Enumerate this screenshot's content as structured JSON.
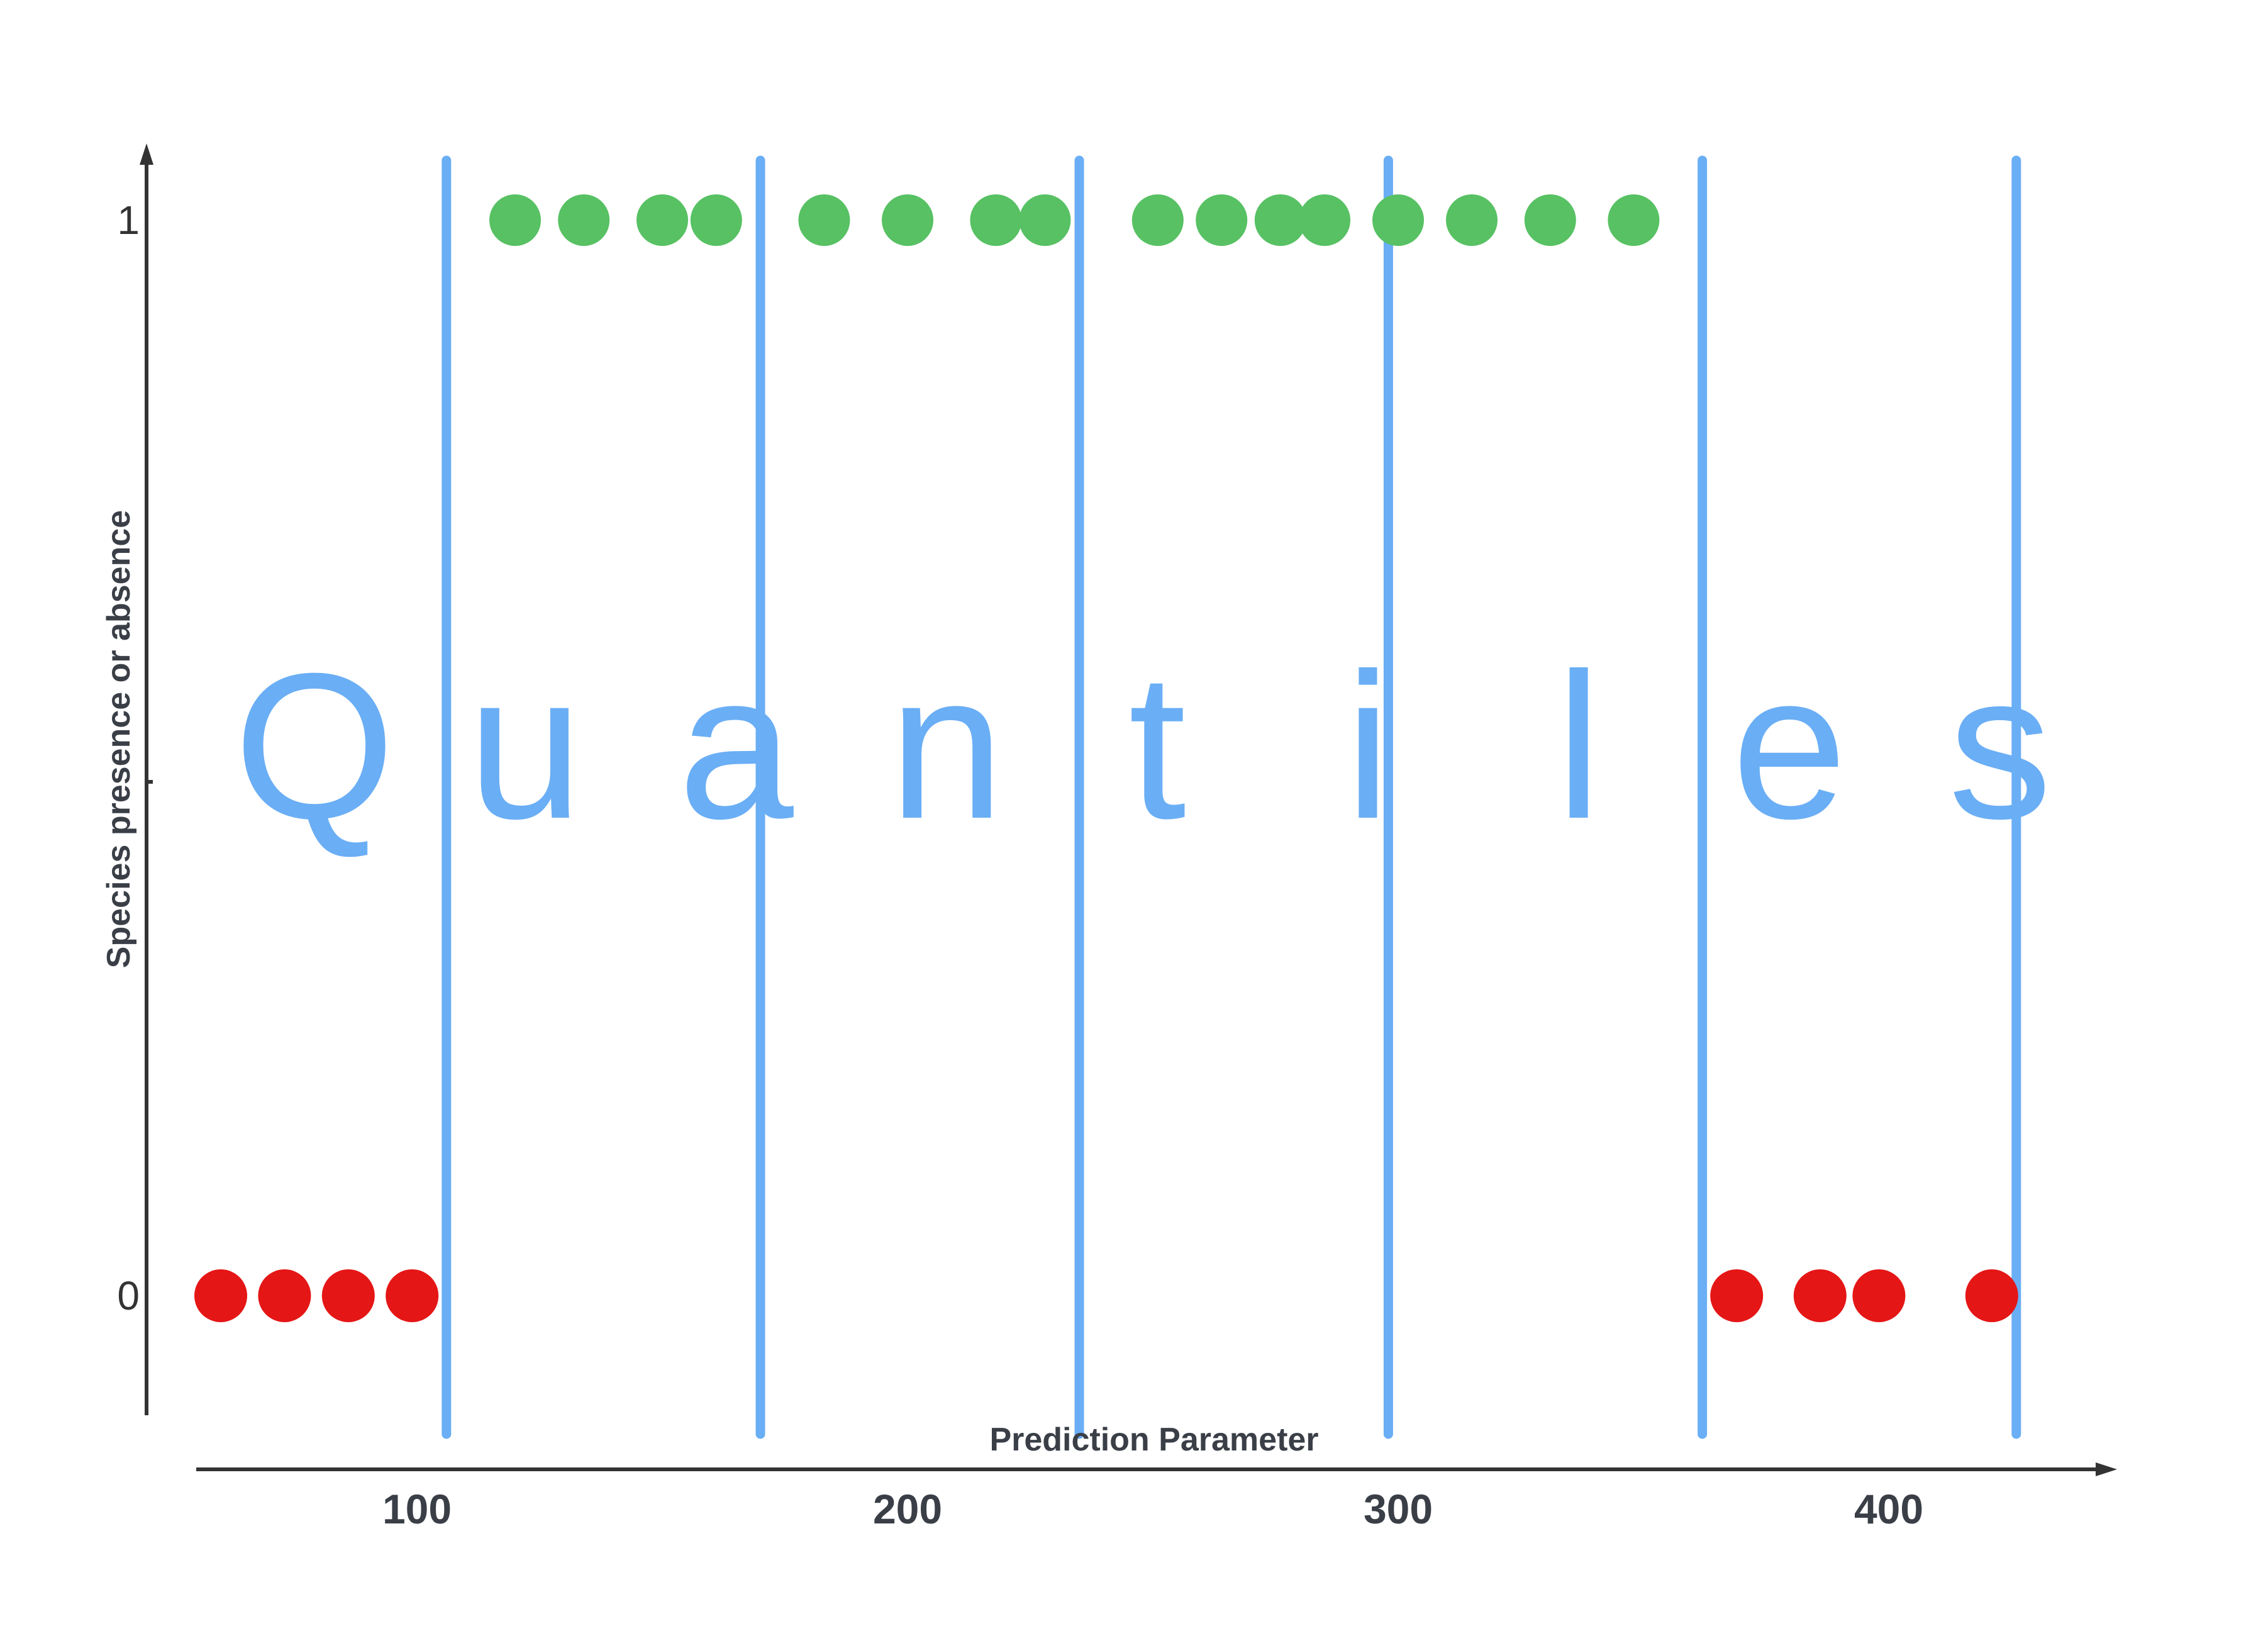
{
  "chart_data": {
    "type": "scatter",
    "title": "",
    "xlabel": "Prediction Parameter",
    "ylabel": "Species presence or absence",
    "x_ticks": [
      "100",
      "200",
      "300",
      "400"
    ],
    "y_ticks": [
      "0",
      "1"
    ],
    "xlim": [
      50,
      460
    ],
    "ylim": [
      -0.15,
      1.1
    ],
    "grid": false,
    "overlay_text": [
      "Q",
      "u",
      "a",
      "n",
      "t",
      "i",
      "l",
      "e",
      "s"
    ],
    "quantile_boundaries": [
      106,
      170,
      235,
      298,
      362,
      426
    ],
    "series": [
      {
        "color": "#57c163",
        "points": [
          {
            "x": 120,
            "y": 1
          },
          {
            "x": 134,
            "y": 1
          },
          {
            "x": 150,
            "y": 1
          },
          {
            "x": 161,
            "y": 1
          },
          {
            "x": 183,
            "y": 1
          },
          {
            "x": 200,
            "y": 1
          },
          {
            "x": 218,
            "y": 1
          },
          {
            "x": 228,
            "y": 1
          },
          {
            "x": 251,
            "y": 1
          },
          {
            "x": 264,
            "y": 1
          },
          {
            "x": 276,
            "y": 1
          },
          {
            "x": 285,
            "y": 1
          },
          {
            "x": 300,
            "y": 1
          },
          {
            "x": 315,
            "y": 1
          },
          {
            "x": 331,
            "y": 1
          },
          {
            "x": 348,
            "y": 1
          }
        ]
      },
      {
        "color": "#e51616",
        "points": [
          {
            "x": 60,
            "y": 0
          },
          {
            "x": 73,
            "y": 0
          },
          {
            "x": 86,
            "y": 0
          },
          {
            "x": 99,
            "y": 0
          },
          {
            "x": 369,
            "y": 0
          },
          {
            "x": 386,
            "y": 0
          },
          {
            "x": 398,
            "y": 0
          },
          {
            "x": 421,
            "y": 0
          }
        ]
      }
    ],
    "colors": {
      "boundary": "#6aaef5",
      "overlay": "#6aaef5",
      "axis": "#333333"
    }
  }
}
